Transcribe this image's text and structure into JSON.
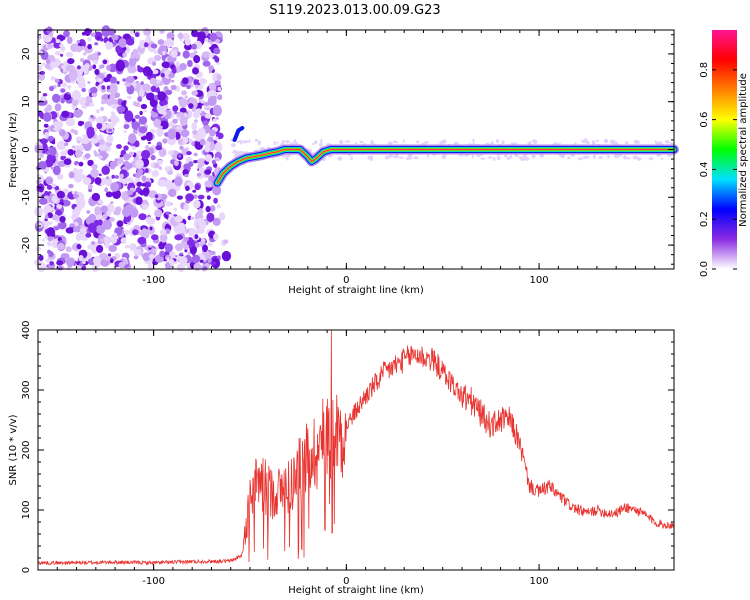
{
  "title": "S119.2023.013.00.09.G23",
  "chart_data": [
    {
      "type": "heatmap",
      "name": "spectrogram",
      "xlabel": "Height of straight line (km)",
      "ylabel": "Frequency (Hz)",
      "xlim": [
        -160,
        170
      ],
      "ylim": [
        -25,
        25
      ],
      "xticks": [
        -100,
        0,
        100
      ],
      "yticks": [
        -20,
        -10,
        0,
        10,
        20
      ],
      "xtick_labels": [
        "-100",
        "0",
        "100"
      ],
      "ytick_labels": [
        "-20",
        "-10",
        "0",
        "10",
        "20"
      ],
      "noise_region": {
        "x": [
          -160,
          -66
        ],
        "y": [
          -25,
          25
        ],
        "color": "purple speckle"
      },
      "ridge": {
        "x": [
          -67,
          -64,
          -60,
          -56,
          -52,
          -48,
          -44,
          -40,
          -36,
          -32,
          -28,
          -24,
          -20,
          -18,
          -16,
          -12,
          -8,
          0,
          10,
          20,
          40,
          80,
          120,
          170
        ],
        "y": [
          -7,
          -5,
          -3.5,
          -2.5,
          -1.8,
          -1.5,
          -1.2,
          -0.8,
          -0.5,
          0,
          0,
          0,
          -1.5,
          -2.5,
          -2,
          -0.5,
          0,
          0,
          0,
          0,
          0,
          0,
          0,
          0
        ]
      },
      "grid": false
    },
    {
      "type": "line",
      "name": "snr",
      "xlabel": "Height of straight line (km)",
      "ylabel": "SNR (10 * v/v)",
      "xlim": [
        -160,
        170
      ],
      "ylim": [
        0,
        400
      ],
      "xticks": [
        -100,
        0,
        100
      ],
      "yticks": [
        0,
        100,
        200,
        300,
        400
      ],
      "xtick_labels": [
        "-100",
        "0",
        "100"
      ],
      "ytick_labels": [
        "0",
        "100",
        "200",
        "300",
        "400"
      ],
      "series_color": "#e8332f",
      "envelope": {
        "x": [
          -160,
          -140,
          -120,
          -100,
          -80,
          -60,
          -54,
          -50,
          -45,
          -40,
          -35,
          -30,
          -25,
          -20,
          -15,
          -10,
          -5,
          0,
          10,
          20,
          30,
          35,
          40,
          45,
          50,
          55,
          60,
          65,
          70,
          75,
          80,
          85,
          90,
          95,
          100,
          105,
          110,
          115,
          120,
          125,
          130,
          135,
          140,
          145,
          150,
          155,
          160,
          165,
          170
        ],
        "y": [
          12,
          12,
          13,
          12,
          14,
          15,
          25,
          120,
          150,
          130,
          130,
          140,
          160,
          190,
          200,
          230,
          230,
          240,
          290,
          330,
          350,
          360,
          355,
          350,
          330,
          310,
          290,
          280,
          260,
          240,
          250,
          250,
          210,
          140,
          130,
          140,
          125,
          110,
          100,
          95,
          100,
          95,
          95,
          105,
          100,
          92,
          80,
          75,
          75
        ]
      },
      "spike": {
        "x": -7.5,
        "y": 405
      },
      "grid": false
    }
  ],
  "colorbar": {
    "label": "Normalized spectral amplitude",
    "ticks": [
      0.0,
      0.2,
      0.4,
      0.6,
      0.8
    ],
    "tick_labels": [
      "0.0",
      "0.2",
      "0.4",
      "0.6",
      "0.8"
    ],
    "range": [
      0,
      0.96
    ],
    "colors": [
      "#ffffff",
      "#8a2be2",
      "#0000ff",
      "#00e0ff",
      "#00ff00",
      "#ffff00",
      "#ff8000",
      "#ff0000",
      "#ff1493"
    ]
  }
}
